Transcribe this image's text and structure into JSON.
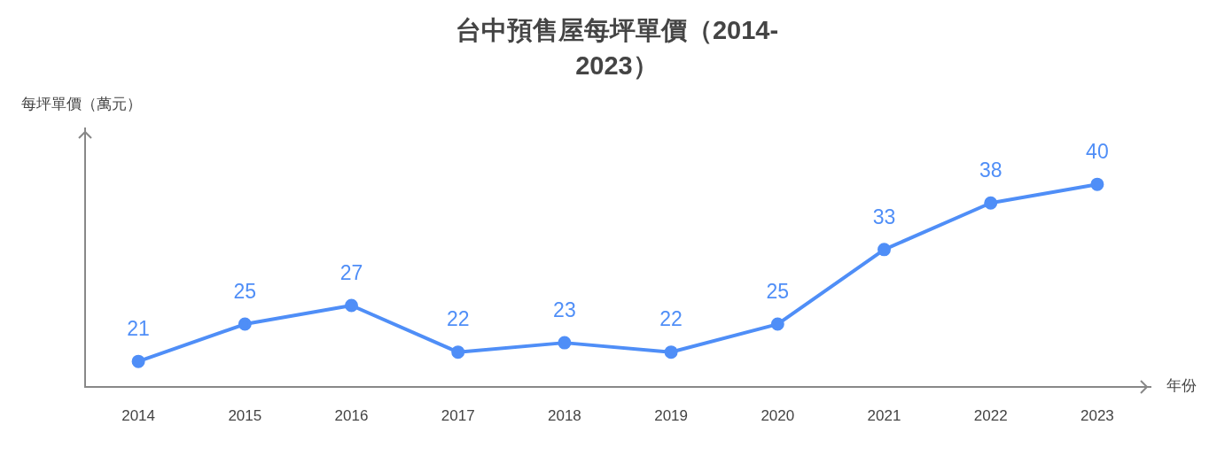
{
  "chart_data": {
    "type": "line",
    "title": "台中預售屋每坪單價（2014-2023）",
    "xlabel": "年份",
    "ylabel": "每坪單價（萬元）",
    "categories": [
      "2014",
      "2015",
      "2016",
      "2017",
      "2018",
      "2019",
      "2020",
      "2021",
      "2022",
      "2023"
    ],
    "series": [
      {
        "color": "#4f8ef7",
        "values": [
          21,
          25,
          27,
          22,
          23,
          22,
          25,
          33,
          38,
          40
        ]
      }
    ],
    "ylim": [
      18.3,
      46
    ],
    "tick_labels": "x",
    "data_labels": true,
    "grid": false,
    "legend": false,
    "marker": "circle",
    "line_style": "solid"
  }
}
